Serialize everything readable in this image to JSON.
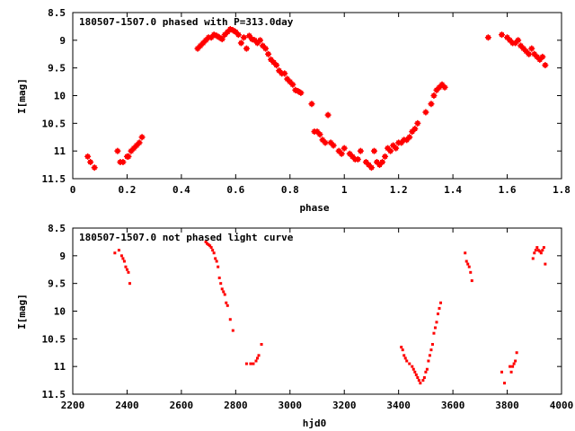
{
  "chart_data": [
    {
      "type": "scatter",
      "title": "180507-1507.0 phased with P=313.0day",
      "xlabel": "phase",
      "ylabel": "I[mag]",
      "xlim": [
        0,
        1.8
      ],
      "ylim": [
        11.5,
        8.5
      ],
      "y_inverted": true,
      "grid": false,
      "marker_color": "#ff0000",
      "xticks": [
        "0",
        "0.2",
        "0.4",
        "0.6",
        "0.8",
        "1",
        "1.2",
        "1.4",
        "1.6",
        "1.8"
      ],
      "yticks": [
        "8.5",
        "9",
        "9.5",
        "10",
        "10.5",
        "11",
        "11.5"
      ],
      "series": [
        {
          "x": [
            0.055,
            0.065,
            0.08,
            0.165,
            0.175,
            0.185,
            0.2,
            0.205,
            0.215,
            0.225,
            0.235,
            0.245,
            0.255,
            0.46,
            0.47,
            0.48,
            0.49,
            0.5,
            0.51,
            0.52,
            0.53,
            0.54,
            0.55,
            0.56,
            0.57,
            0.58,
            0.59,
            0.6,
            0.61,
            0.62,
            0.63,
            0.64,
            0.65,
            0.66,
            0.67,
            0.68,
            0.69,
            0.7,
            0.71,
            0.72,
            0.73,
            0.74,
            0.75,
            0.76,
            0.77,
            0.78,
            0.79,
            0.8,
            0.81,
            0.82,
            0.83,
            0.84,
            0.88,
            0.89,
            0.9,
            0.91,
            0.92,
            0.93,
            0.94,
            0.95,
            0.96,
            0.98,
            0.99,
            1.0,
            1.02,
            1.03,
            1.04,
            1.05,
            1.06,
            1.08,
            1.09,
            1.1,
            1.11,
            1.12,
            1.13,
            1.14,
            1.15,
            1.16,
            1.17,
            1.18,
            1.19,
            1.2,
            1.21,
            1.22,
            1.23,
            1.24,
            1.25,
            1.26,
            1.27,
            1.3,
            1.32,
            1.33,
            1.34,
            1.35,
            1.36,
            1.37,
            1.53,
            1.58,
            1.6,
            1.61,
            1.62,
            1.63,
            1.64,
            1.65,
            1.66,
            1.67,
            1.68,
            1.69,
            1.7,
            1.71,
            1.72,
            1.73,
            1.74
          ],
          "y": [
            11.1,
            11.2,
            11.3,
            11.0,
            11.2,
            11.2,
            11.1,
            11.1,
            11.0,
            10.95,
            10.9,
            10.85,
            10.75,
            9.15,
            9.1,
            9.05,
            9.0,
            8.95,
            8.95,
            8.9,
            8.92,
            8.95,
            8.98,
            8.9,
            8.85,
            8.8,
            8.82,
            8.85,
            8.9,
            9.05,
            8.95,
            9.15,
            8.92,
            8.98,
            9.0,
            9.05,
            9.0,
            9.1,
            9.15,
            9.25,
            9.35,
            9.4,
            9.45,
            9.55,
            9.6,
            9.6,
            9.7,
            9.75,
            9.8,
            9.9,
            9.92,
            9.95,
            10.15,
            10.65,
            10.65,
            10.7,
            10.8,
            10.85,
            10.35,
            10.85,
            10.9,
            11.0,
            11.05,
            10.95,
            11.05,
            11.1,
            11.15,
            11.15,
            11.0,
            11.2,
            11.25,
            11.3,
            11.0,
            11.2,
            11.25,
            11.2,
            11.1,
            10.95,
            11.0,
            10.9,
            10.95,
            10.85,
            10.85,
            10.8,
            10.8,
            10.75,
            10.65,
            10.6,
            10.5,
            10.3,
            10.15,
            10.0,
            9.9,
            9.85,
            9.8,
            9.85,
            8.95,
            8.9,
            8.95,
            9.0,
            9.05,
            9.05,
            9.0,
            9.1,
            9.15,
            9.2,
            9.25,
            9.15,
            9.25,
            9.3,
            9.35,
            9.3,
            9.45
          ]
        }
      ]
    },
    {
      "type": "scatter",
      "title": "180507-1507.0 not phased light curve",
      "xlabel": "hjd0",
      "ylabel": "I[mag]",
      "xlim": [
        2200,
        4000
      ],
      "ylim": [
        11.5,
        8.5
      ],
      "y_inverted": true,
      "grid": false,
      "marker_color": "#ff0000",
      "xticks": [
        "2200",
        "2400",
        "2600",
        "2800",
        "3000",
        "3200",
        "3400",
        "3600",
        "3800",
        "4000"
      ],
      "yticks": [
        "8.5",
        "9",
        "9.5",
        "10",
        "10.5",
        "11",
        "11.5"
      ],
      "series": [
        {
          "x": [
            2355,
            2370,
            2380,
            2385,
            2390,
            2395,
            2400,
            2405,
            2410,
            2690,
            2695,
            2700,
            2705,
            2710,
            2715,
            2720,
            2725,
            2730,
            2735,
            2740,
            2745,
            2750,
            2755,
            2760,
            2765,
            2770,
            2780,
            2790,
            2840,
            2855,
            2865,
            2875,
            2880,
            2885,
            2895,
            3410,
            3415,
            3420,
            3425,
            3430,
            3440,
            3450,
            3455,
            3460,
            3465,
            3470,
            3475,
            3480,
            3490,
            3495,
            3500,
            3505,
            3510,
            3515,
            3520,
            3525,
            3530,
            3535,
            3540,
            3545,
            3550,
            3555,
            3645,
            3650,
            3655,
            3660,
            3665,
            3670,
            3780,
            3790,
            3810,
            3815,
            3820,
            3825,
            3830,
            3835,
            3895,
            3900,
            3905,
            3910,
            3915,
            3920,
            3925,
            3930,
            3935,
            3940
          ],
          "y": [
            8.95,
            8.9,
            9.0,
            9.05,
            9.1,
            9.2,
            9.25,
            9.3,
            9.5,
            8.75,
            8.78,
            8.8,
            8.82,
            8.85,
            8.9,
            8.95,
            9.05,
            9.1,
            9.2,
            9.4,
            9.5,
            9.6,
            9.65,
            9.7,
            9.85,
            9.9,
            10.15,
            10.35,
            10.95,
            10.95,
            10.95,
            10.9,
            10.85,
            10.8,
            10.6,
            10.65,
            10.7,
            10.8,
            10.85,
            10.9,
            10.95,
            11.0,
            11.05,
            11.1,
            11.15,
            11.2,
            11.25,
            11.3,
            11.25,
            11.2,
            11.1,
            11.05,
            10.9,
            10.8,
            10.7,
            10.6,
            10.4,
            10.3,
            10.2,
            10.05,
            9.95,
            9.85,
            8.95,
            9.1,
            9.15,
            9.2,
            9.3,
            9.45,
            11.1,
            11.3,
            11.0,
            11.1,
            11.0,
            10.95,
            10.9,
            10.75,
            9.05,
            8.95,
            8.9,
            8.85,
            8.9,
            8.92,
            8.95,
            8.9,
            8.85,
            9.15
          ]
        }
      ]
    }
  ]
}
